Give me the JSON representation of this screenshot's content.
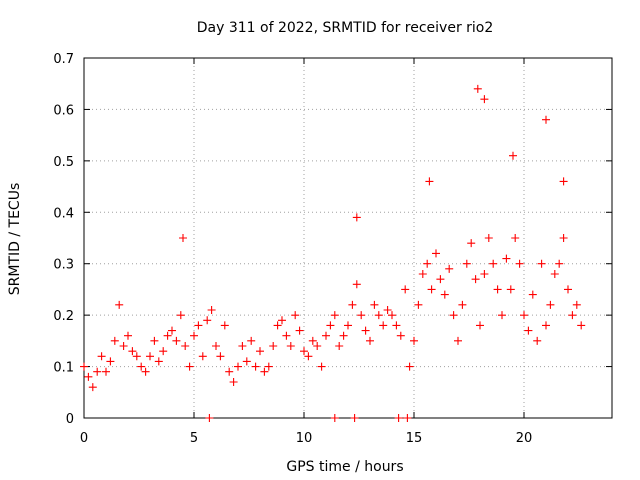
{
  "chart_data": {
    "type": "scatter",
    "title": "Day 311 of 2022, SRMTID for receiver rio2",
    "xlabel": "GPS time / hours",
    "ylabel": "SRMTID / TECUs",
    "xlim": [
      0,
      24
    ],
    "ylim": [
      0,
      0.7
    ],
    "x_ticks": [
      0,
      5,
      10,
      15,
      20
    ],
    "x_tick_labels": [
      "0",
      "5",
      "10",
      "15",
      "20"
    ],
    "y_ticks": [
      0,
      0.1,
      0.2,
      0.3,
      0.4,
      0.5,
      0.6,
      0.7
    ],
    "y_tick_labels": [
      "0",
      "0.1",
      "0.2",
      "0.3",
      "0.4",
      "0.5",
      "0.6",
      "0.7"
    ],
    "grid": true,
    "marker": "+",
    "series_color": "#ff0000",
    "series": [
      {
        "name": "SRMTID",
        "x": [
          0.0,
          0.2,
          0.4,
          0.6,
          0.8,
          1.0,
          1.2,
          1.4,
          1.6,
          1.8,
          2.0,
          2.2,
          2.4,
          2.6,
          2.8,
          3.0,
          3.2,
          3.4,
          3.6,
          3.8,
          4.0,
          4.2,
          4.4,
          4.6,
          4.8,
          5.0,
          5.2,
          5.4,
          5.6,
          5.8,
          6.0,
          6.2,
          6.4,
          6.6,
          6.8,
          7.0,
          7.2,
          7.4,
          7.6,
          7.8,
          8.0,
          8.2,
          8.4,
          8.6,
          8.8,
          9.0,
          9.2,
          9.4,
          9.6,
          9.8,
          10.0,
          10.2,
          10.4,
          10.6,
          10.8,
          11.0,
          11.2,
          11.4,
          11.6,
          11.8,
          12.0,
          12.2,
          12.4,
          12.6,
          12.8,
          13.0,
          13.2,
          13.4,
          13.6,
          13.8,
          14.0,
          14.2,
          14.4,
          14.6,
          14.8,
          15.0,
          15.2,
          15.4,
          15.6,
          15.8,
          16.0,
          16.2,
          16.4,
          16.6,
          16.8,
          17.0,
          17.2,
          17.4,
          17.6,
          17.8,
          18.0,
          18.2,
          18.4,
          18.6,
          18.8,
          19.0,
          19.2,
          19.4,
          19.6,
          19.8,
          20.0,
          20.2,
          20.4,
          20.6,
          20.8,
          21.0,
          21.2,
          21.4,
          21.6,
          21.8,
          22.0,
          22.2,
          22.4,
          22.6,
          5.7,
          11.4,
          12.3,
          14.3,
          14.7,
          4.5,
          12.4,
          15.7,
          17.9,
          18.2,
          19.5,
          21.0,
          21.8
        ],
        "y": [
          0.1,
          0.08,
          0.06,
          0.09,
          0.12,
          0.09,
          0.11,
          0.15,
          0.22,
          0.14,
          0.16,
          0.13,
          0.12,
          0.1,
          0.09,
          0.12,
          0.15,
          0.11,
          0.13,
          0.16,
          0.17,
          0.15,
          0.2,
          0.14,
          0.1,
          0.16,
          0.18,
          0.12,
          0.19,
          0.21,
          0.14,
          0.12,
          0.18,
          0.09,
          0.07,
          0.1,
          0.14,
          0.11,
          0.15,
          0.1,
          0.13,
          0.09,
          0.1,
          0.14,
          0.18,
          0.19,
          0.16,
          0.14,
          0.2,
          0.17,
          0.13,
          0.12,
          0.15,
          0.14,
          0.1,
          0.16,
          0.18,
          0.2,
          0.14,
          0.16,
          0.18,
          0.22,
          0.26,
          0.2,
          0.17,
          0.15,
          0.22,
          0.2,
          0.18,
          0.21,
          0.2,
          0.18,
          0.16,
          0.25,
          0.1,
          0.15,
          0.22,
          0.28,
          0.3,
          0.25,
          0.32,
          0.27,
          0.24,
          0.29,
          0.2,
          0.15,
          0.22,
          0.3,
          0.34,
          0.27,
          0.18,
          0.28,
          0.35,
          0.3,
          0.25,
          0.2,
          0.31,
          0.25,
          0.35,
          0.3,
          0.2,
          0.17,
          0.24,
          0.15,
          0.3,
          0.18,
          0.22,
          0.28,
          0.3,
          0.35,
          0.25,
          0.2,
          0.22,
          0.18,
          0.0,
          0.0,
          0.0,
          0.0,
          0.0,
          0.35,
          0.39,
          0.46,
          0.64,
          0.62,
          0.51,
          0.58,
          0.46
        ]
      }
    ]
  }
}
